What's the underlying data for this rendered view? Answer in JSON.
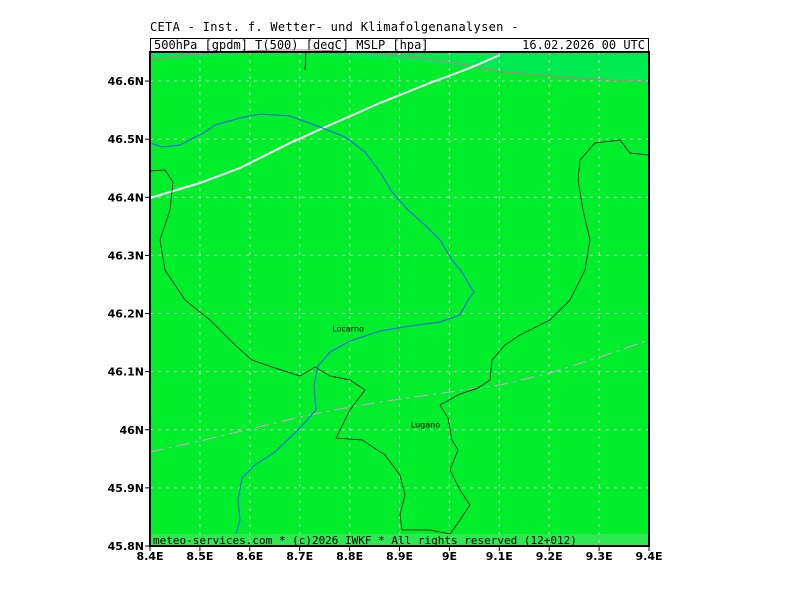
{
  "header": {
    "title": "CETA - Inst. f. Wetter- und Klimafolgenanalysen -",
    "params": "500hPa [gpdm] T(500) [degC] MSLP [hpa]",
    "datetime": "16.02.2026 00 UTC"
  },
  "map": {
    "background_color": "#00ee2c",
    "lat_labels": [
      "46.6N",
      "46.5N",
      "46.4N",
      "46.3N",
      "46.2N",
      "46.1N",
      "46N",
      "45.9N",
      "45.8N"
    ],
    "lon_labels": [
      "8.4E",
      "8.5E",
      "8.6E",
      "8.7E",
      "8.8E",
      "8.9E",
      "9E",
      "9.1E",
      "9.2E",
      "9.3E",
      "9.4E"
    ],
    "cities": [
      {
        "name": "Locarno",
        "lon": 8.797,
        "lat": 46.169
      },
      {
        "name": "Lugano",
        "lon": 8.952,
        "lat": 46.004
      }
    ]
  },
  "footer": {
    "text": "meteo-services.com * (c)2026 IWKF * All rights reserved (12+012)"
  }
}
